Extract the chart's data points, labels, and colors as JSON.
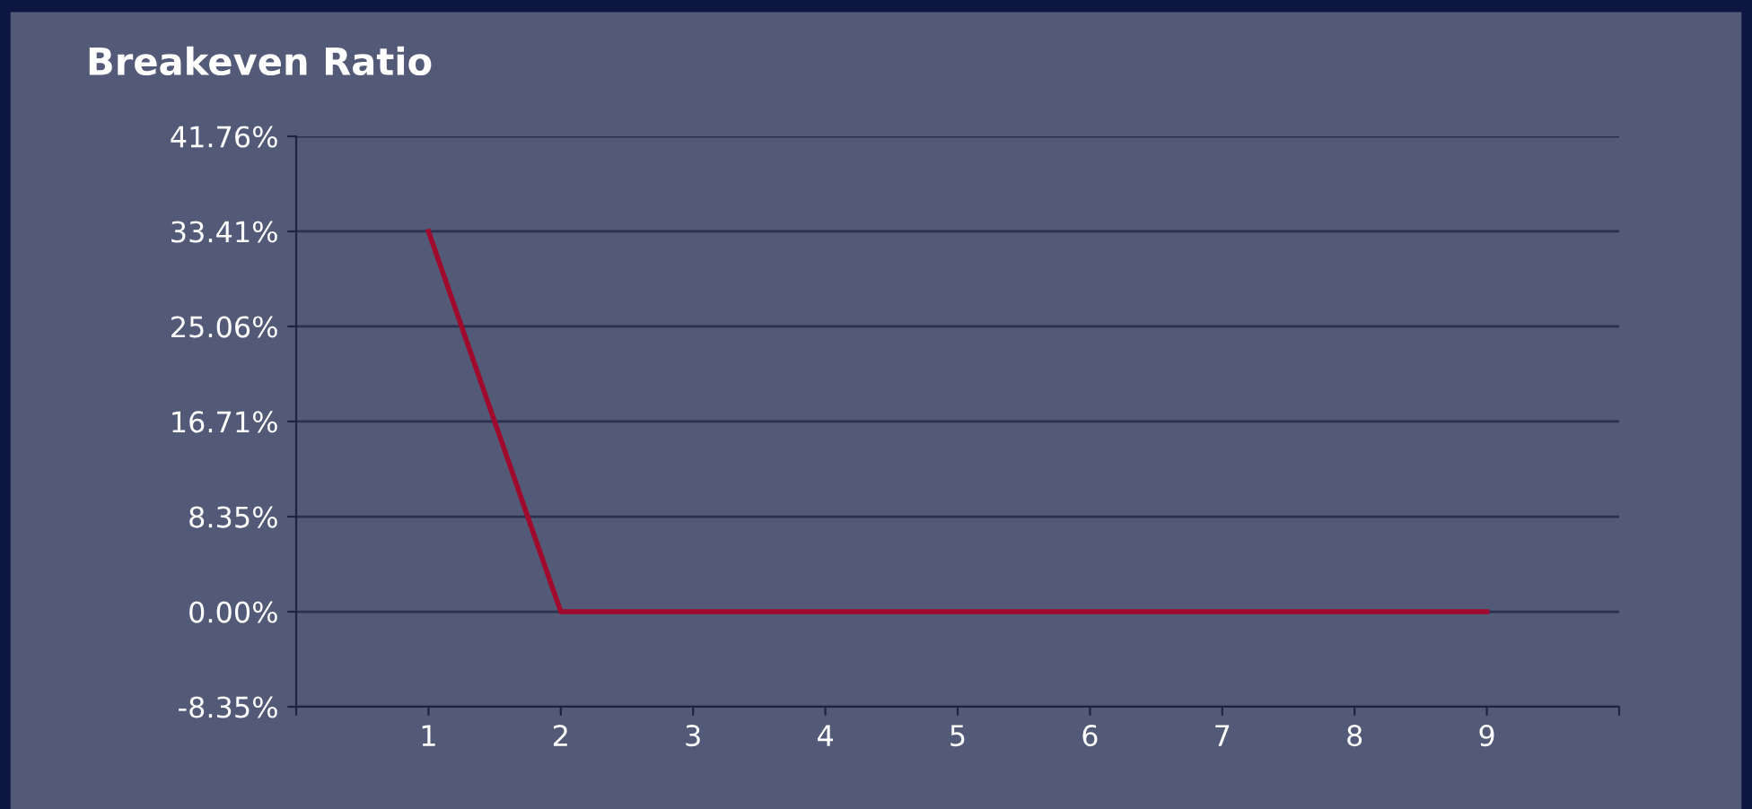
{
  "chart_data": {
    "type": "line",
    "title": "Breakeven Ratio",
    "x": [
      1,
      2,
      3,
      4,
      5,
      6,
      7,
      8,
      9
    ],
    "series": [
      {
        "color": "#a00a2c",
        "values": [
          33.41,
          0,
          0,
          0,
          0,
          0,
          0,
          0,
          0
        ]
      }
    ],
    "xlim": [
      0,
      10
    ],
    "xticks": [
      {
        "value": 0,
        "label": null
      },
      1,
      2,
      3,
      4,
      5,
      6,
      7,
      8,
      9,
      {
        "value": 10,
        "label": null
      }
    ],
    "ylim": [
      -8.35,
      41.76
    ],
    "yticks": [
      {
        "value": -8.35,
        "label": "-8.35%"
      },
      {
        "value": 0,
        "label": "0.00%"
      },
      {
        "value": 8.35,
        "label": "8.35%"
      },
      {
        "value": 16.71,
        "label": "16.71%"
      },
      {
        "value": 25.06,
        "label": "25.06%"
      },
      {
        "value": 33.41,
        "label": "33.41%"
      },
      {
        "value": 41.76,
        "label": "41.76%"
      }
    ],
    "grid": "y",
    "marker": "none",
    "line_style": "solid",
    "legend": false
  }
}
